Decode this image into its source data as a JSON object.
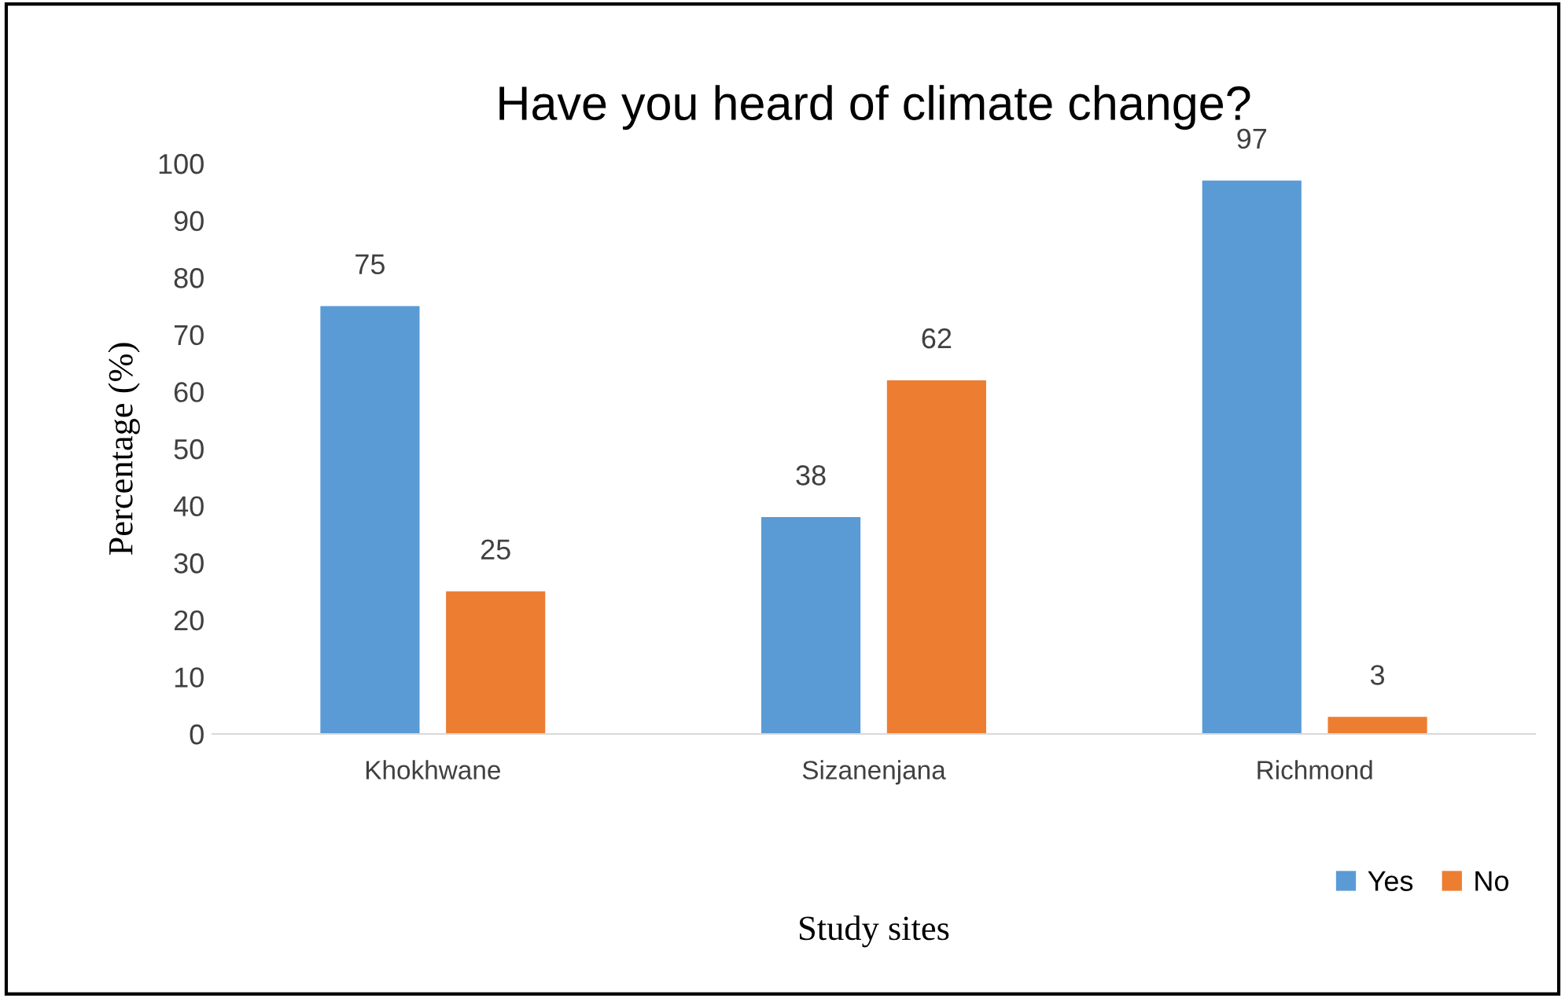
{
  "chart_data": {
    "type": "bar",
    "title": "Have you heard of climate change?",
    "xlabel": "Study sites",
    "ylabel": "Percentage (%)",
    "categories": [
      "Khokhwane",
      "Sizanenjana",
      "Richmond"
    ],
    "series": [
      {
        "name": "Yes",
        "color": "#5b9bd5",
        "values": [
          75,
          38,
          97
        ]
      },
      {
        "name": "No",
        "color": "#ed7d31",
        "values": [
          25,
          62,
          3
        ]
      }
    ],
    "ylim": [
      0,
      100
    ],
    "yticks": [
      0,
      10,
      20,
      30,
      40,
      50,
      60,
      70,
      80,
      90,
      100
    ],
    "data_labels": true,
    "legend": "bottom right",
    "grid": false
  }
}
